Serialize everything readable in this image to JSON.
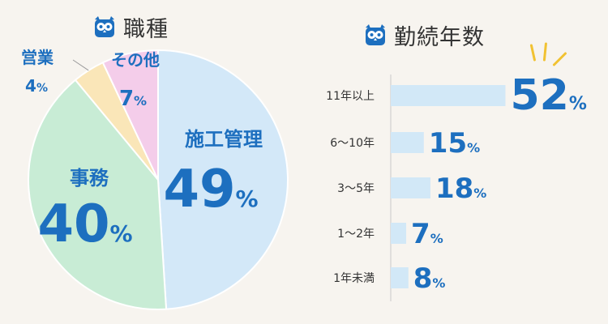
{
  "colors": {
    "accent": "#1d6fbf",
    "pie_blue": "#d3e8f8",
    "pie_green": "#c8ecd5",
    "pie_yellow": "#fae6b8",
    "pie_pink": "#f4cdea",
    "bar": "#d2e8f7",
    "burst": "#f1c232"
  },
  "icons": {
    "title_icon": "owl-icon",
    "burst": "burst-lines-icon"
  },
  "chart_data": [
    {
      "type": "pie",
      "title": "職種",
      "percent_sign": "%",
      "slices": [
        {
          "name": "施工管理",
          "value": 49
        },
        {
          "name": "事務",
          "value": 40
        },
        {
          "name": "営業",
          "value": 4
        },
        {
          "name": "その他",
          "value": 7
        }
      ]
    },
    {
      "type": "bar",
      "orientation": "horizontal",
      "title": "勤続年数",
      "percent_sign": "%",
      "categories": [
        "11年以上",
        "6〜10年",
        "3〜5年",
        "1〜2年",
        "1年未満"
      ],
      "values": [
        52,
        15,
        18,
        7,
        8
      ]
    }
  ]
}
